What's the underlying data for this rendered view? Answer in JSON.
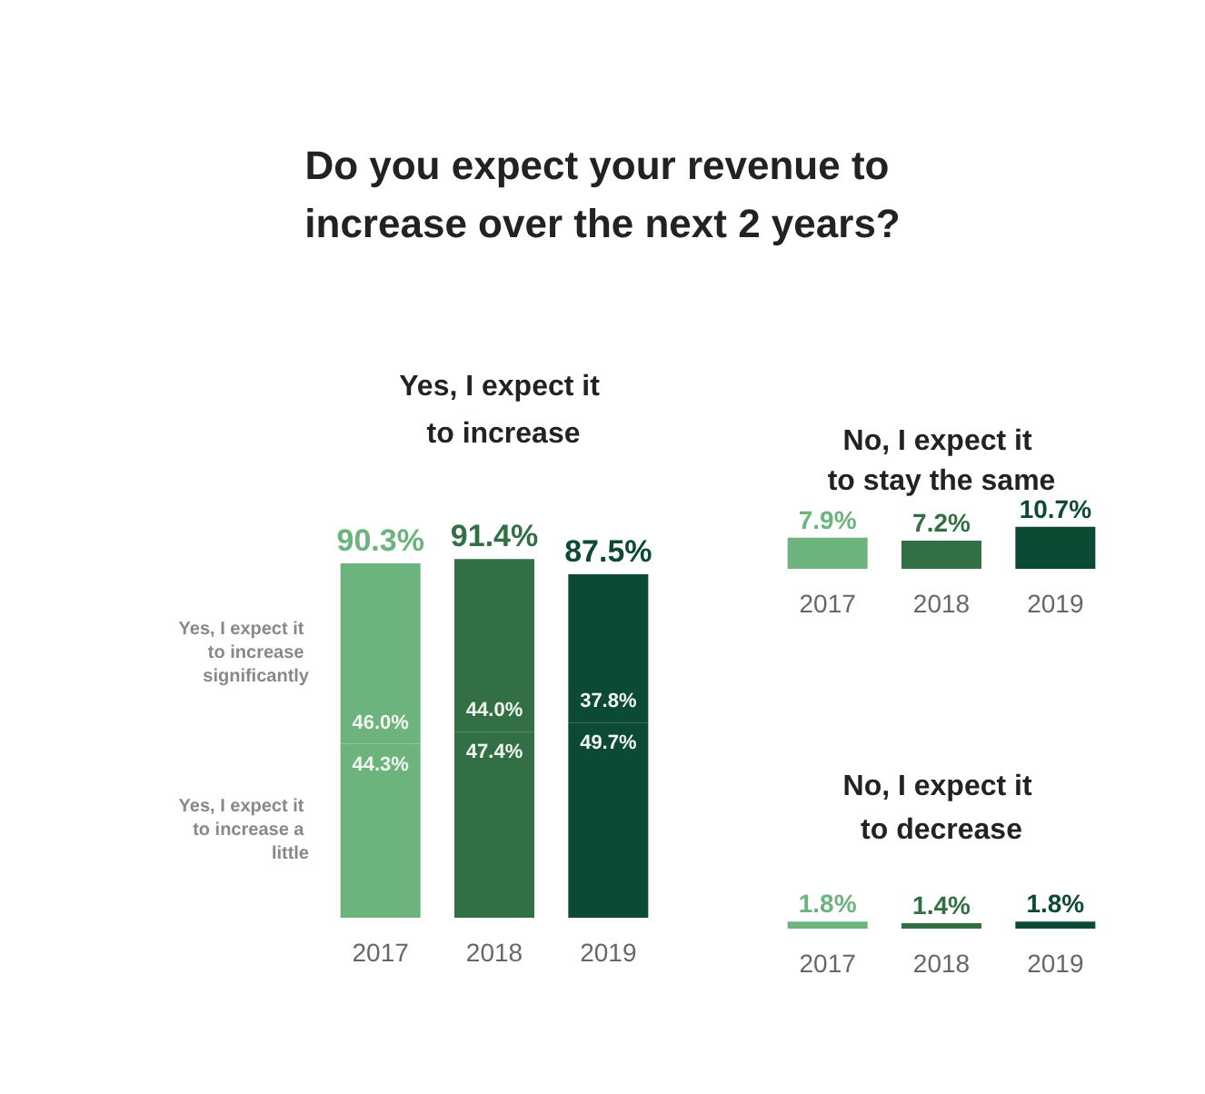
{
  "chart_data": [
    {
      "type": "bar",
      "title": "Do you expect your revenue to increase over the next 2 years?",
      "subtitle": "Yes, I expect it to increase",
      "categories": [
        "2017",
        "2018",
        "2019"
      ],
      "stacked": true,
      "legend": false,
      "grid": false,
      "series": [
        {
          "name": "Yes, I expect it to increase a little",
          "colors": [
            "#6db37d",
            "#336f45",
            "#0c4a33"
          ],
          "values": [
            44.3,
            47.4,
            49.7
          ],
          "value_labels": [
            "44.3%",
            "47.4%",
            "49.7%"
          ]
        },
        {
          "name": "Yes, I expect it to increase significantly",
          "colors": [
            "#6db37d",
            "#336f45",
            "#0c4a33"
          ],
          "values": [
            46.0,
            44.0,
            37.8
          ],
          "value_labels": [
            "46.0%",
            "44.0%",
            "37.8%"
          ]
        }
      ],
      "totals": [
        "90.3%",
        "91.4%",
        "87.5%"
      ]
    },
    {
      "type": "bar",
      "title": "No, I expect it to stay the same",
      "categories": [
        "2017",
        "2018",
        "2019"
      ],
      "colors": [
        "#6db37d",
        "#336f45",
        "#0c4a33"
      ],
      "legend": false,
      "grid": false,
      "values": [
        7.9,
        7.2,
        10.7
      ],
      "value_labels": [
        "7.9%",
        "7.2%",
        "10.7%"
      ]
    },
    {
      "type": "bar",
      "title": "No, I expect it to decrease",
      "categories": [
        "2017",
        "2018",
        "2019"
      ],
      "colors": [
        "#6db37d",
        "#336f45",
        "#0c4a33"
      ],
      "legend": false,
      "grid": false,
      "values": [
        1.8,
        1.4,
        1.8
      ],
      "value_labels": [
        "1.8%",
        "1.4%",
        "1.8%"
      ]
    }
  ]
}
